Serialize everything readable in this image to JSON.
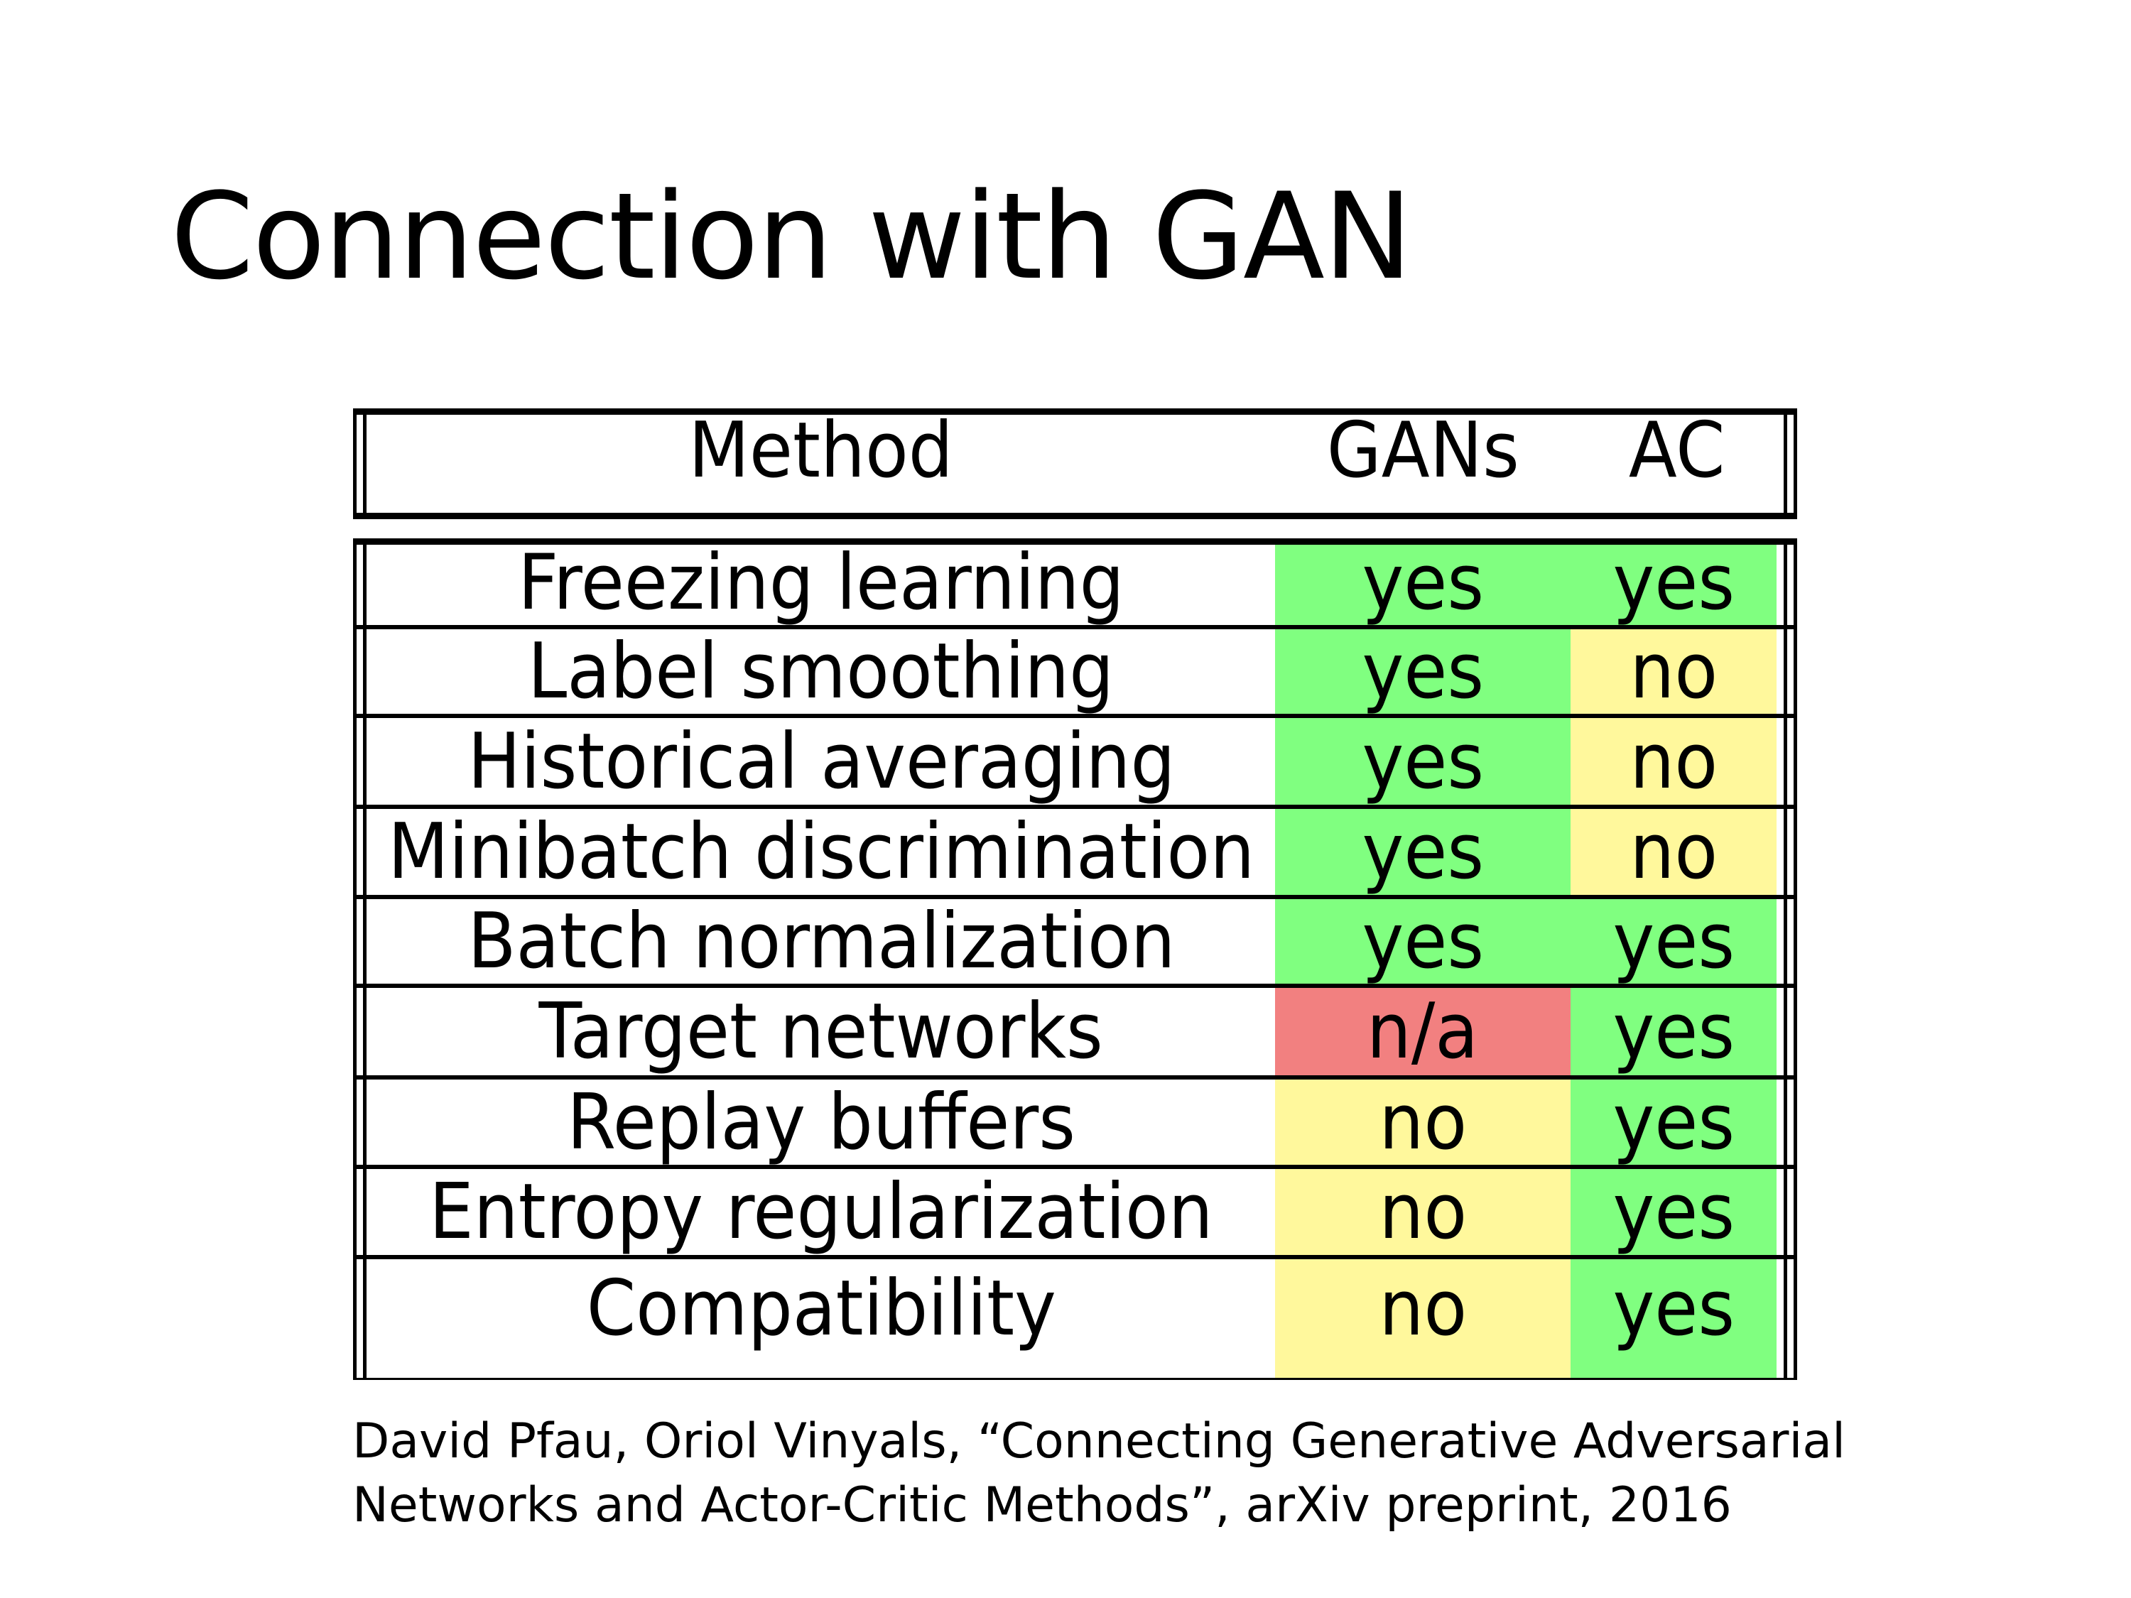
{
  "title": "Connection with GAN",
  "table": {
    "headers": [
      "Method",
      "GANs",
      "AC"
    ],
    "rows": [
      {
        "method": "Freezing learning",
        "gans": "yes",
        "ac": "yes"
      },
      {
        "method": "Label smoothing",
        "gans": "yes",
        "ac": "no"
      },
      {
        "method": "Historical averaging",
        "gans": "yes",
        "ac": "no"
      },
      {
        "method": "Minibatch discrimination",
        "gans": "yes",
        "ac": "no"
      },
      {
        "method": "Batch normalization",
        "gans": "yes",
        "ac": "yes"
      },
      {
        "method": "Target networks",
        "gans": "n/a",
        "ac": "yes"
      },
      {
        "method": "Replay buffers",
        "gans": "no",
        "ac": "yes"
      },
      {
        "method": "Entropy regularization",
        "gans": "no",
        "ac": "yes"
      },
      {
        "method": "Compatibility",
        "gans": "no",
        "ac": "yes"
      }
    ],
    "colors": {
      "yes": "#80ff80",
      "no": "#fff89c",
      "n/a": "#f28080"
    }
  },
  "citation": {
    "line1": "David Pfau, Oriol Vinyals, “Connecting Generative Adversarial",
    "line2": "Networks and Actor-Critic Methods”, arXiv preprint, 2016"
  }
}
